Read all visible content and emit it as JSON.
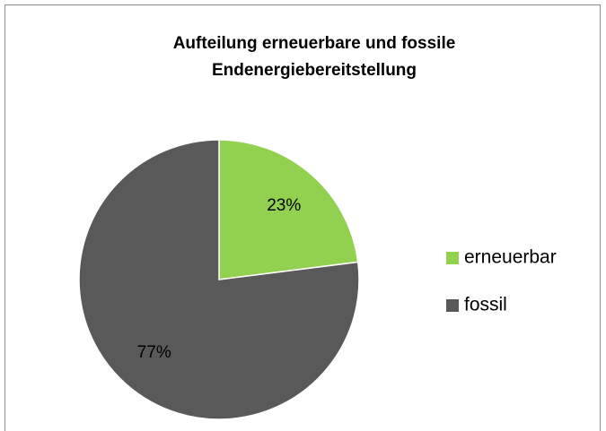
{
  "chart_data": {
    "type": "pie",
    "title": "Aufteilung erneuerbare und fossile Endenergiebereitstellung",
    "categories": [
      "erneuerbar",
      "fossil"
    ],
    "values": [
      23,
      77
    ],
    "value_labels": [
      "23%",
      "77%"
    ],
    "colors": [
      "#92d050",
      "#595959"
    ],
    "legend": "right"
  }
}
